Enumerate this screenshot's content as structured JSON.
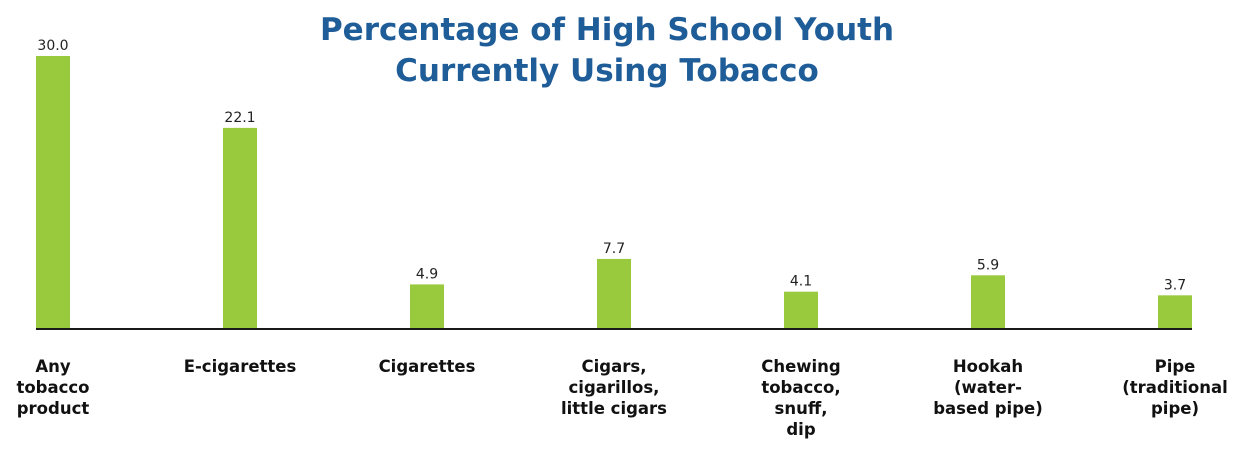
{
  "chart_data": {
    "type": "bar",
    "title_lines": [
      "Percentage of High School Youth",
      "Currently Using Tobacco"
    ],
    "categories": [
      [
        "Any",
        "tobacco",
        "product"
      ],
      [
        "E-cigarettes"
      ],
      [
        "Cigarettes"
      ],
      [
        "Cigars,",
        "cigarillos,",
        "little cigars"
      ],
      [
        "Chewing",
        "tobacco,",
        "snuff,",
        "dip"
      ],
      [
        "Hookah",
        "(water-",
        "based pipe)"
      ],
      [
        "Pipe",
        "(traditional",
        "pipe)"
      ]
    ],
    "values": [
      30.0,
      22.1,
      4.9,
      7.7,
      4.1,
      5.9,
      3.7
    ],
    "value_labels": [
      "30.0",
      "22.1",
      "4.9",
      "7.7",
      "4.1",
      "5.9",
      "3.7"
    ],
    "ylim": [
      0,
      30.0
    ],
    "grid": false,
    "legend": "none",
    "bar_color": "#99c93c",
    "title_color": "#1f5d99"
  }
}
